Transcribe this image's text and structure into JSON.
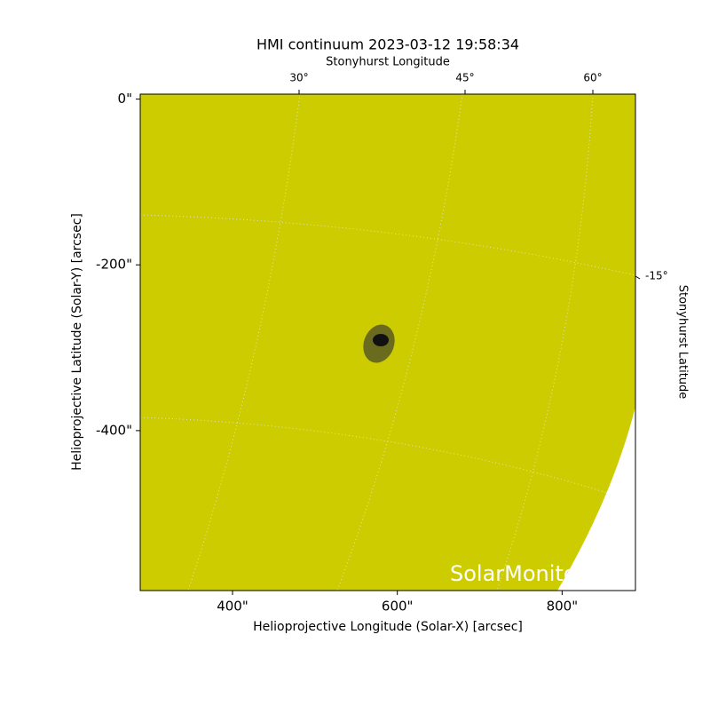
{
  "chart_data": {
    "type": "image",
    "title": "HMI continuum 2023-03-12 19:58:34",
    "xlabel": "Helioprojective Longitude (Solar-X) [arcsec]",
    "ylabel": "Helioprojective Latitude (Solar-Y) [arcsec]",
    "x2label": "Stonyhurst Longitude",
    "y2label": "Stonyhurst Latitude",
    "xlim": [
      288,
      889
    ],
    "ylim": [
      -593,
      6
    ],
    "xticks": [
      {
        "value": 400,
        "label": "400\""
      },
      {
        "value": 600,
        "label": "600\""
      },
      {
        "value": 800,
        "label": "800\""
      }
    ],
    "yticks": [
      {
        "value": 0,
        "label": "0\""
      },
      {
        "value": -200,
        "label": "-200\""
      },
      {
        "value": -400,
        "label": "-400\""
      }
    ],
    "x2ticks": [
      "30°",
      "45°",
      "60°"
    ],
    "y2ticks": [
      "-15°"
    ],
    "annotation": "SolarMonitor",
    "color": "#cccc00"
  }
}
